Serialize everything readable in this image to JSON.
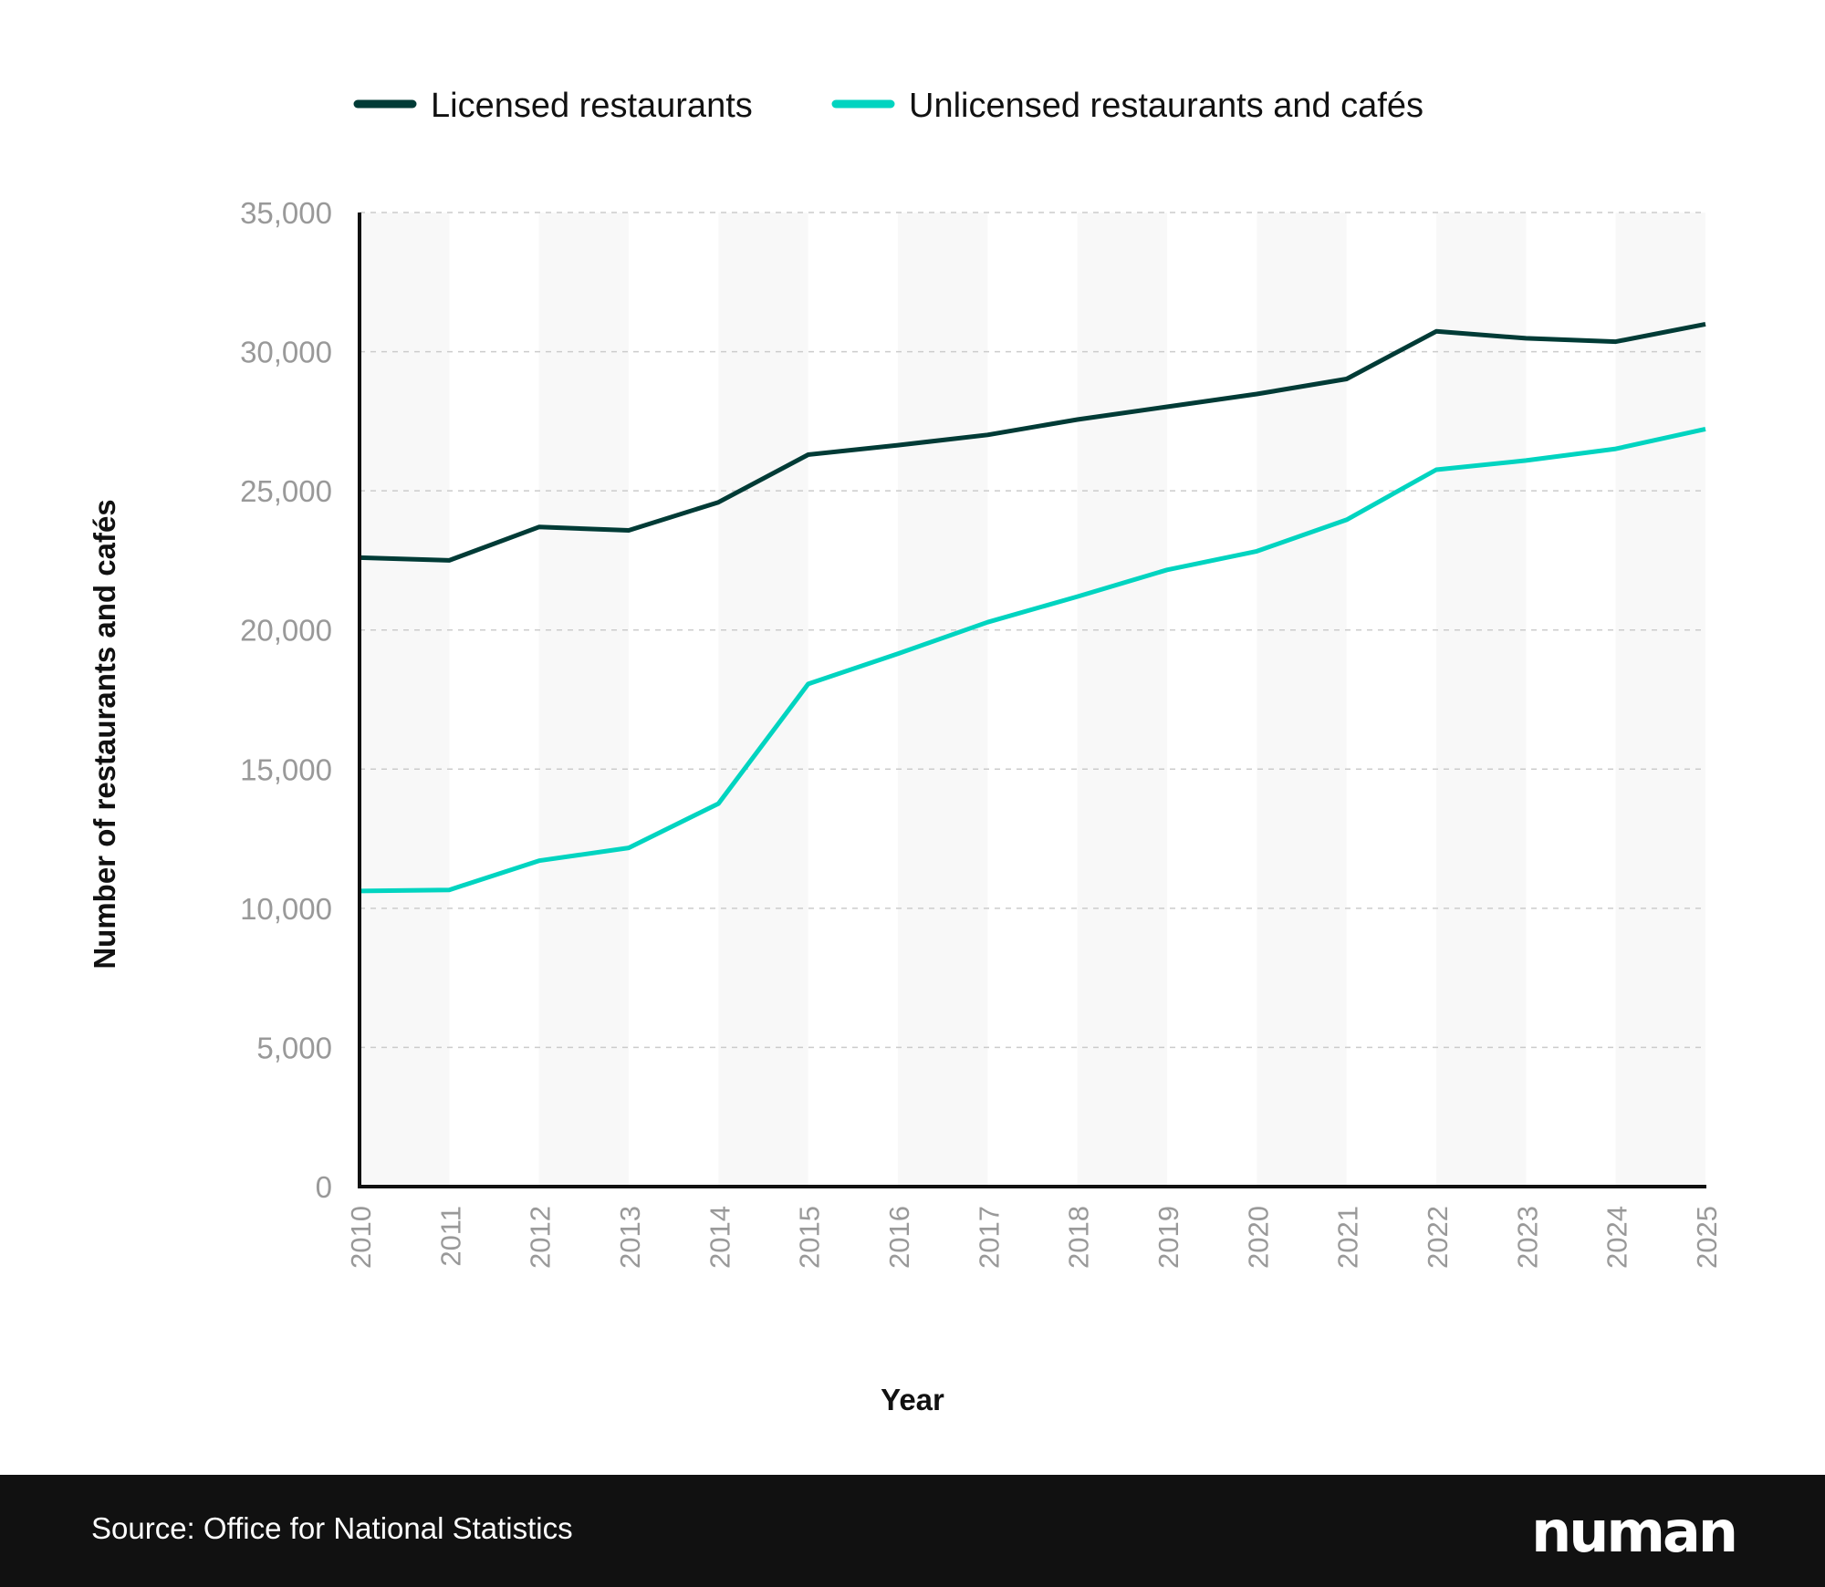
{
  "chart_data": {
    "type": "line",
    "xlabel": "Year",
    "ylabel": "Number of restaurants and cafés",
    "x": [
      2010,
      2011,
      2012,
      2013,
      2014,
      2015,
      2016,
      2017,
      2018,
      2019,
      2020,
      2021,
      2022,
      2023,
      2024,
      2025
    ],
    "ylim": [
      0,
      35000
    ],
    "yticks": [
      0,
      5000,
      10000,
      15000,
      20000,
      25000,
      30000,
      35000
    ],
    "ytick_labels": [
      "0",
      "5,000",
      "10,000",
      "15,000",
      "20,000",
      "25,000",
      "30,000",
      "35,000"
    ],
    "grid": "horizontal dashed",
    "legend_position": "top",
    "series": [
      {
        "name": "Licensed restaurants",
        "color": "#003b36",
        "values": [
          22600,
          22500,
          23700,
          23580,
          24590,
          26300,
          26640,
          27010,
          27560,
          28020,
          28480,
          29020,
          30730,
          30480,
          30360,
          30990
        ]
      },
      {
        "name": "Unlicensed restaurants and cafés",
        "color": "#00d4c0",
        "values": [
          10620,
          10660,
          11710,
          12170,
          13760,
          18060,
          19150,
          20280,
          21200,
          22160,
          22830,
          23960,
          25760,
          26090,
          26510,
          27220
        ]
      }
    ]
  },
  "footer": {
    "source": "Source: Office for National Statistics",
    "logo": "numan"
  }
}
